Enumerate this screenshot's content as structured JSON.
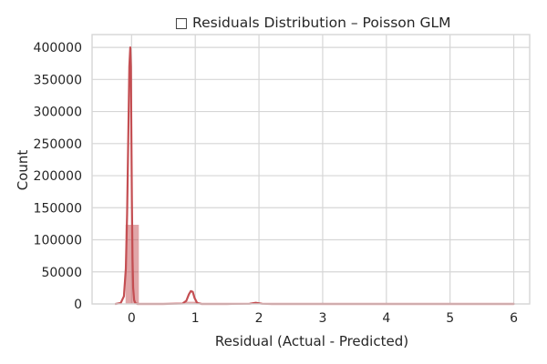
{
  "chart_data": {
    "type": "histogram",
    "title": "□ Residuals Distribution – Poisson GLM",
    "xlabel": "Residual (Actual - Predicted)",
    "ylabel": "Count",
    "xlim": [
      -0.62,
      6.25
    ],
    "ylim": [
      0,
      420000
    ],
    "xticks": [
      0,
      1,
      2,
      3,
      4,
      5,
      6
    ],
    "yticks": [
      0,
      50000,
      100000,
      150000,
      200000,
      250000,
      300000,
      350000,
      400000
    ],
    "grid": true,
    "bar_color": "#c44e52",
    "line_color": "#c44e52",
    "bins": [
      {
        "x0": -0.1,
        "x1": 0.12,
        "count": 124000
      },
      {
        "x0": 0.8,
        "x1": 1.02,
        "count": 4000
      },
      {
        "x0": 1.8,
        "x1": 2.02,
        "count": 1000
      },
      {
        "x0": 2.8,
        "x1": 3.02,
        "count": 150
      },
      {
        "x0": 3.8,
        "x1": 4.02,
        "count": 60
      },
      {
        "x0": 4.8,
        "x1": 5.02,
        "count": 30
      },
      {
        "x0": 5.8,
        "x1": 6.02,
        "count": 10
      }
    ],
    "kde": {
      "x": [
        -0.25,
        -0.17,
        -0.12,
        -0.09,
        -0.07,
        -0.05,
        -0.035,
        -0.02,
        -0.01,
        -0.005,
        0.005,
        0.015,
        0.025,
        0.04,
        0.06,
        0.09,
        0.15,
        0.5,
        0.8,
        0.86,
        0.9,
        0.93,
        0.96,
        0.99,
        1.03,
        1.1,
        1.5,
        1.85,
        1.95,
        2.05,
        2.2,
        3.0,
        4.0,
        5.0,
        6.0
      ],
      "y": [
        0,
        1500,
        12000,
        55000,
        140000,
        270000,
        370000,
        400000,
        370000,
        290000,
        160000,
        70000,
        25000,
        6000,
        1200,
        0,
        0,
        0,
        600,
        5000,
        15000,
        20000,
        19000,
        9000,
        1500,
        0,
        0,
        300,
        1800,
        300,
        0,
        0,
        0,
        0,
        0
      ]
    }
  }
}
